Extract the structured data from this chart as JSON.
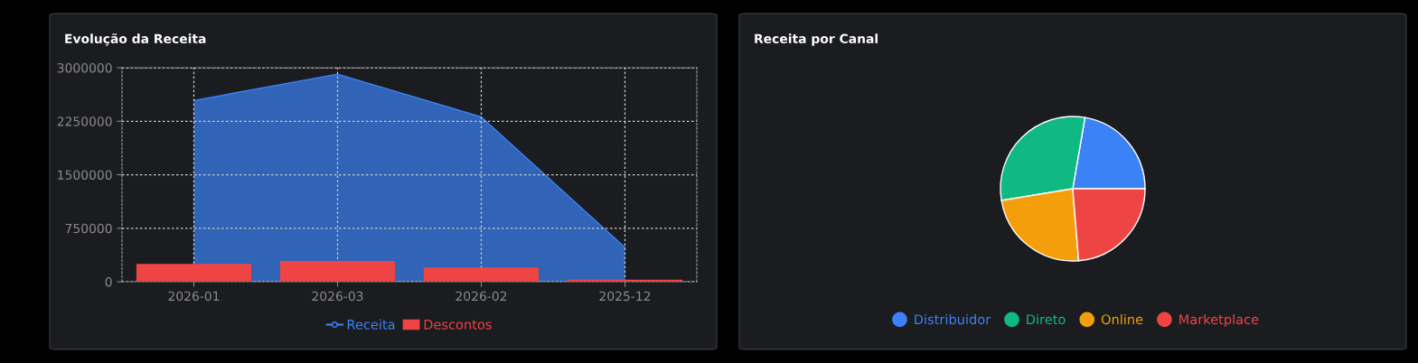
{
  "chart_data": [
    {
      "type": "bar",
      "title": "Evolução da Receita",
      "categories": [
        "2026-01",
        "2026-03",
        "2026-02",
        "2025-12"
      ],
      "ylim": [
        0,
        3000000
      ],
      "yticks": [
        0,
        750000,
        1500000,
        2250000,
        3000000
      ],
      "grid": true,
      "legend": "bottom",
      "series": [
        {
          "name": "Receita",
          "type": "area",
          "color": "#3b82f6",
          "values": [
            2540000,
            2910000,
            2310000,
            480000
          ]
        },
        {
          "name": "Descontos",
          "type": "bar",
          "color": "#ef4444",
          "values": [
            250000,
            290000,
            200000,
            30000
          ]
        }
      ]
    },
    {
      "type": "pie",
      "title": "Receita por Canal",
      "categories": [
        "Distribuidor",
        "Direto",
        "Online",
        "Marketplace"
      ],
      "values": [
        22.3,
        30.3,
        23.7,
        23.7
      ],
      "colors": [
        "#3b82f6",
        "#10b981",
        "#f59e0b",
        "#ef4444"
      ],
      "legend": "bottom"
    }
  ]
}
